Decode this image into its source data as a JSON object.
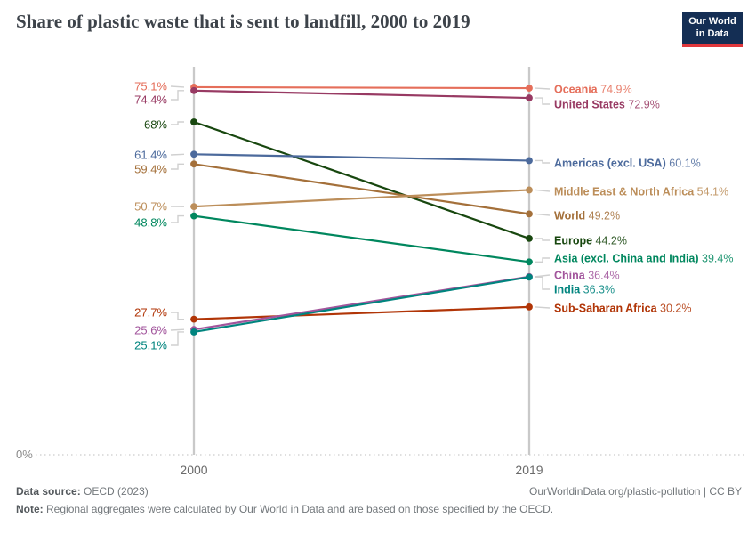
{
  "header": {
    "title": "Share of plastic waste that is sent to landfill, 2000 to 2019",
    "logo": {
      "line1": "Our World",
      "line2": "in Data"
    }
  },
  "chart_data": {
    "type": "line",
    "subtype": "slope",
    "title": "Share of plastic waste that is sent to landfill, 2000 to 2019",
    "x": [
      2000,
      2019
    ],
    "x_tick_labels": [
      "2000",
      "2019"
    ],
    "y_axis": {
      "unit": "%",
      "ylim": [
        0,
        79
      ],
      "zero_label": "0%",
      "grid": "dotted-zero-line-only"
    },
    "legend_position": "right-inline-labels",
    "series": [
      {
        "name": "Oceania",
        "color": "#E56E5A",
        "values": [
          75.1,
          74.9
        ],
        "start_label": "75.1%",
        "end_label": "74.9%"
      },
      {
        "name": "United States",
        "color": "#983A63",
        "values": [
          74.4,
          72.9
        ],
        "start_label": "74.4%",
        "end_label": "72.9%"
      },
      {
        "name": "Europe",
        "color": "#18470F",
        "values": [
          68.0,
          44.2
        ],
        "start_label": "68%",
        "end_label": "44.2%"
      },
      {
        "name": "Americas (excl. USA)",
        "color": "#4C6A9C",
        "values": [
          61.4,
          60.1
        ],
        "start_label": "61.4%",
        "end_label": "60.1%"
      },
      {
        "name": "World",
        "color": "#A4703A",
        "values": [
          59.4,
          49.2
        ],
        "start_label": "59.4%",
        "end_label": "49.2%"
      },
      {
        "name": "Middle East & North Africa",
        "color": "#BC8E5A",
        "values": [
          50.7,
          54.1
        ],
        "start_label": "50.7%",
        "end_label": "54.1%"
      },
      {
        "name": "Asia (excl. China and India)",
        "color": "#00875E",
        "values": [
          48.8,
          39.4
        ],
        "start_label": "48.8%",
        "end_label": "39.4%"
      },
      {
        "name": "Sub-Saharan Africa",
        "color": "#B13507",
        "values": [
          27.7,
          30.2
        ],
        "start_label": "27.7%",
        "end_label": "30.2%"
      },
      {
        "name": "China",
        "color": "#A2559C",
        "values": [
          25.6,
          36.4
        ],
        "start_label": "25.6%",
        "end_label": "36.4%"
      },
      {
        "name": "India",
        "color": "#00847E",
        "values": [
          25.1,
          36.3
        ],
        "start_label": "25.1%",
        "end_label": "36.3%"
      }
    ]
  },
  "footer": {
    "data_source_label": "Data source:",
    "data_source_value": "OECD (2023)",
    "link": "OurWorldinData.org/plastic-pollution | CC BY",
    "note_label": "Note:",
    "note_text": "Regional aggregates were calculated by Our World in Data and are based on those specified by the OECD."
  }
}
